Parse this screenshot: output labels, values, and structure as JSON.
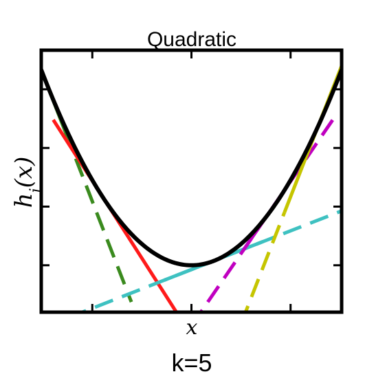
{
  "chart_data": {
    "type": "line",
    "title": "Quadratic",
    "xlabel": "x",
    "ylabel": "h_i(x)",
    "caption": "k=5",
    "xlim": [
      -1,
      1
    ],
    "ylim": [
      -0.24,
      1.1
    ],
    "grid": false,
    "curve": {
      "function": "x^2",
      "color": "#000000",
      "x": [
        -1.0,
        -0.9,
        -0.8,
        -0.7,
        -0.6,
        -0.5,
        -0.4,
        -0.3,
        -0.2,
        -0.1,
        0.0,
        0.1,
        0.2,
        0.3,
        0.4,
        0.5,
        0.6,
        0.7,
        0.8,
        0.9,
        1.0
      ],
      "y": [
        1.0,
        0.81,
        0.64,
        0.49,
        0.36,
        0.25,
        0.16,
        0.09,
        0.04,
        0.01,
        0.0,
        0.01,
        0.04,
        0.09,
        0.16,
        0.25,
        0.36,
        0.49,
        0.64,
        0.81,
        1.0
      ]
    },
    "tangents": [
      {
        "color": "#3a8a1e",
        "slope": -1.98,
        "intercept": -0.98,
        "solid": [
          -1.0,
          -0.84
        ],
        "dashed": [
          -0.84,
          -0.4
        ]
      },
      {
        "color": "#ff1a1a",
        "slope": -1.2,
        "intercept": -0.36,
        "solid": [
          -0.92,
          -0.06
        ],
        "dashed": [
          0.0,
          0.08
        ]
      },
      {
        "color": "#3ec1c1",
        "slope": 0.3,
        "intercept": -0.022,
        "solid": [
          -0.18,
          0.48
        ],
        "dashed": [
          -1.0,
          1.0
        ]
      },
      {
        "color": "#c000c0",
        "slope": 1.12,
        "intercept": -0.31,
        "solid": [
          0.34,
          0.62
        ],
        "dashed": [
          0.0,
          0.94
        ]
      },
      {
        "color": "#c5c500",
        "slope": 1.97,
        "intercept": -0.95,
        "solid": [
          0.62,
          1.0
        ],
        "dashed": [
          0.33,
          0.62
        ]
      }
    ]
  }
}
